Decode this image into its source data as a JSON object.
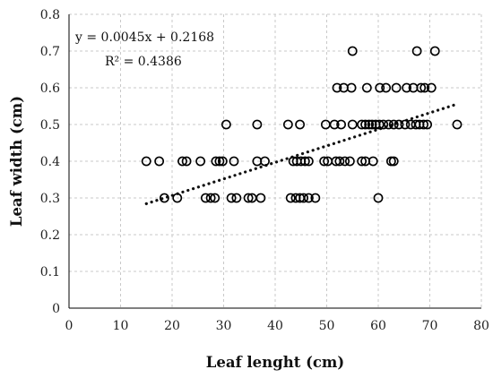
{
  "chart_data": {
    "type": "scatter",
    "title": "",
    "xlabel": "Leaf lenght (cm)",
    "ylabel": "Leaf width (cm)",
    "xlim": [
      0,
      80
    ],
    "ylim": [
      0,
      0.8
    ],
    "x_ticks": [
      0,
      10,
      20,
      30,
      40,
      50,
      60,
      70,
      80
    ],
    "y_ticks": [
      0,
      0.1,
      0.2,
      0.3,
      0.4,
      0.5,
      0.6,
      0.7,
      0.8
    ],
    "x_tick_labels": [
      "0",
      "10",
      "20",
      "30",
      "40",
      "50",
      "60",
      "70",
      "80"
    ],
    "y_tick_labels": [
      "0",
      "0.1",
      "0.2",
      "0.3",
      "0.4",
      "0.5",
      "0.6",
      "0.7",
      "0.8"
    ],
    "grid": "dashed horizontal and vertical",
    "marker": "open circle",
    "points": [
      {
        "x": 18.5,
        "y": 0.3
      },
      {
        "x": 21,
        "y": 0.3
      },
      {
        "x": 26.5,
        "y": 0.3
      },
      {
        "x": 27.5,
        "y": 0.3
      },
      {
        "x": 28.3,
        "y": 0.3
      },
      {
        "x": 31.5,
        "y": 0.3
      },
      {
        "x": 32.5,
        "y": 0.3
      },
      {
        "x": 34.8,
        "y": 0.3
      },
      {
        "x": 35.5,
        "y": 0.3
      },
      {
        "x": 37.2,
        "y": 0.3
      },
      {
        "x": 43,
        "y": 0.3
      },
      {
        "x": 44,
        "y": 0.3
      },
      {
        "x": 44.8,
        "y": 0.3
      },
      {
        "x": 45.5,
        "y": 0.3
      },
      {
        "x": 46.5,
        "y": 0.3
      },
      {
        "x": 47.8,
        "y": 0.3
      },
      {
        "x": 60,
        "y": 0.3
      },
      {
        "x": 15,
        "y": 0.4
      },
      {
        "x": 17.5,
        "y": 0.4
      },
      {
        "x": 22,
        "y": 0.4
      },
      {
        "x": 22.8,
        "y": 0.4
      },
      {
        "x": 25.5,
        "y": 0.4
      },
      {
        "x": 28.5,
        "y": 0.4
      },
      {
        "x": 29.2,
        "y": 0.4
      },
      {
        "x": 29.8,
        "y": 0.4
      },
      {
        "x": 32,
        "y": 0.4
      },
      {
        "x": 36.5,
        "y": 0.4
      },
      {
        "x": 38,
        "y": 0.4
      },
      {
        "x": 43.5,
        "y": 0.4
      },
      {
        "x": 44.2,
        "y": 0.4
      },
      {
        "x": 45,
        "y": 0.4
      },
      {
        "x": 45.8,
        "y": 0.4
      },
      {
        "x": 46.5,
        "y": 0.4
      },
      {
        "x": 49.5,
        "y": 0.4
      },
      {
        "x": 50.2,
        "y": 0.4
      },
      {
        "x": 51.8,
        "y": 0.4
      },
      {
        "x": 52.5,
        "y": 0.4
      },
      {
        "x": 53.5,
        "y": 0.4
      },
      {
        "x": 54.5,
        "y": 0.4
      },
      {
        "x": 56.8,
        "y": 0.4
      },
      {
        "x": 57.5,
        "y": 0.4
      },
      {
        "x": 59,
        "y": 0.4
      },
      {
        "x": 62.5,
        "y": 0.4
      },
      {
        "x": 63,
        "y": 0.4
      },
      {
        "x": 30.5,
        "y": 0.5
      },
      {
        "x": 36.5,
        "y": 0.5
      },
      {
        "x": 42.5,
        "y": 0.5
      },
      {
        "x": 44.8,
        "y": 0.5
      },
      {
        "x": 49.8,
        "y": 0.5
      },
      {
        "x": 51.5,
        "y": 0.5
      },
      {
        "x": 52.8,
        "y": 0.5
      },
      {
        "x": 55,
        "y": 0.5
      },
      {
        "x": 56.8,
        "y": 0.5
      },
      {
        "x": 57.5,
        "y": 0.5
      },
      {
        "x": 58.2,
        "y": 0.5
      },
      {
        "x": 58.8,
        "y": 0.5
      },
      {
        "x": 59.5,
        "y": 0.5
      },
      {
        "x": 60.2,
        "y": 0.5
      },
      {
        "x": 61,
        "y": 0.5
      },
      {
        "x": 62,
        "y": 0.5
      },
      {
        "x": 63,
        "y": 0.5
      },
      {
        "x": 64,
        "y": 0.5
      },
      {
        "x": 65.2,
        "y": 0.5
      },
      {
        "x": 66.3,
        "y": 0.5
      },
      {
        "x": 67.3,
        "y": 0.5
      },
      {
        "x": 68,
        "y": 0.5
      },
      {
        "x": 68.8,
        "y": 0.5
      },
      {
        "x": 69.5,
        "y": 0.5
      },
      {
        "x": 75.3,
        "y": 0.5
      },
      {
        "x": 52,
        "y": 0.6
      },
      {
        "x": 53.3,
        "y": 0.6
      },
      {
        "x": 54.8,
        "y": 0.6
      },
      {
        "x": 57.8,
        "y": 0.6
      },
      {
        "x": 60.3,
        "y": 0.6
      },
      {
        "x": 61.5,
        "y": 0.6
      },
      {
        "x": 63.5,
        "y": 0.6
      },
      {
        "x": 65.5,
        "y": 0.6
      },
      {
        "x": 66.8,
        "y": 0.6
      },
      {
        "x": 68.3,
        "y": 0.6
      },
      {
        "x": 69,
        "y": 0.6
      },
      {
        "x": 70.3,
        "y": 0.6
      },
      {
        "x": 55,
        "y": 0.7
      },
      {
        "x": 67.5,
        "y": 0.7
      },
      {
        "x": 71,
        "y": 0.7
      }
    ],
    "trendline": {
      "style": "dotted",
      "slope": 0.0045,
      "intercept": 0.2168,
      "x_range": [
        15,
        75
      ]
    },
    "annotations": [
      {
        "text": "y = 0.0045x + 0.2168",
        "position": "top-left"
      },
      {
        "text": "R² = 0.4386",
        "position": "top-left"
      }
    ]
  }
}
